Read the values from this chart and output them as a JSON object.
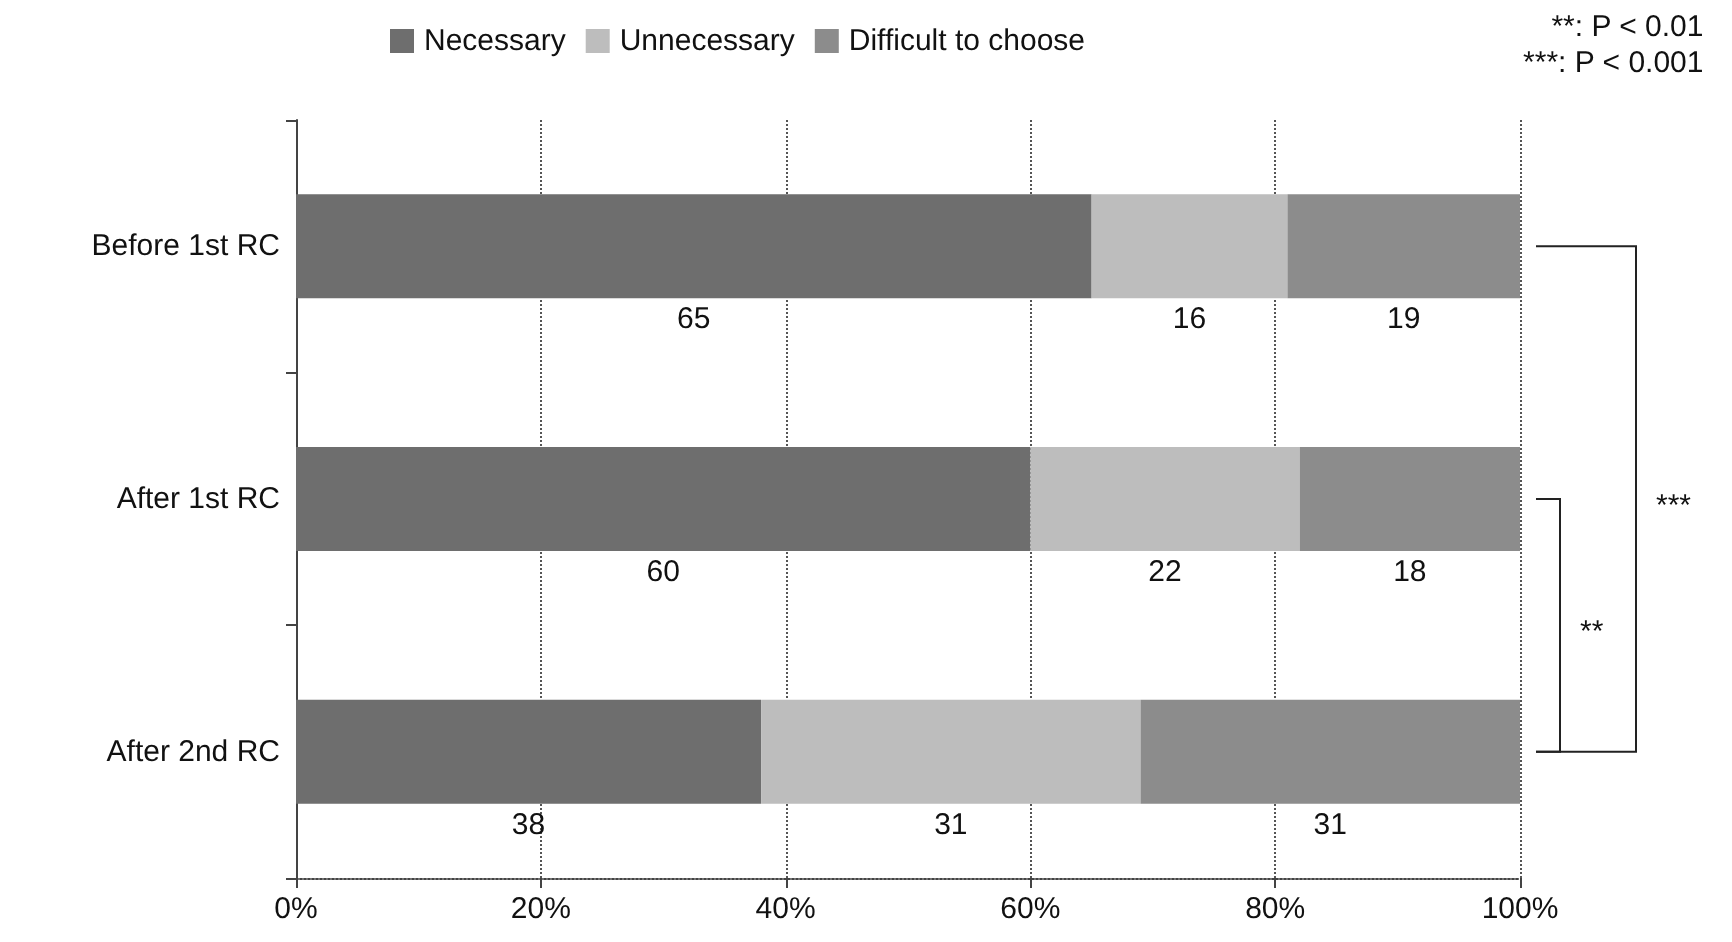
{
  "chart_data": {
    "type": "bar",
    "orientation": "horizontal",
    "stacked": true,
    "categories": [
      "Before 1st RC",
      "After 1st RC",
      "After 2nd RC"
    ],
    "series": [
      {
        "name": "Necessary",
        "color": "#6e6e6e",
        "values": [
          65,
          60,
          38
        ]
      },
      {
        "name": "Unnecessary",
        "color": "#bdbdbd",
        "values": [
          16,
          22,
          31
        ]
      },
      {
        "name": "Difficult to choose",
        "color": "#8c8c8c",
        "values": [
          19,
          18,
          31
        ]
      }
    ],
    "xlim": [
      0,
      100
    ],
    "xticks": [
      {
        "value": 0,
        "label": "0%"
      },
      {
        "value": 20,
        "label": "20%"
      },
      {
        "value": 40,
        "label": "40%"
      },
      {
        "value": 60,
        "label": "60%"
      },
      {
        "value": 80,
        "label": "80%"
      },
      {
        "value": 100,
        "label": "100%"
      }
    ],
    "grid": "x",
    "legend": "top",
    "data_labels": true,
    "annotations": [
      "**: P < 0.01",
      "***: P < 0.001",
      "**",
      "***"
    ]
  }
}
